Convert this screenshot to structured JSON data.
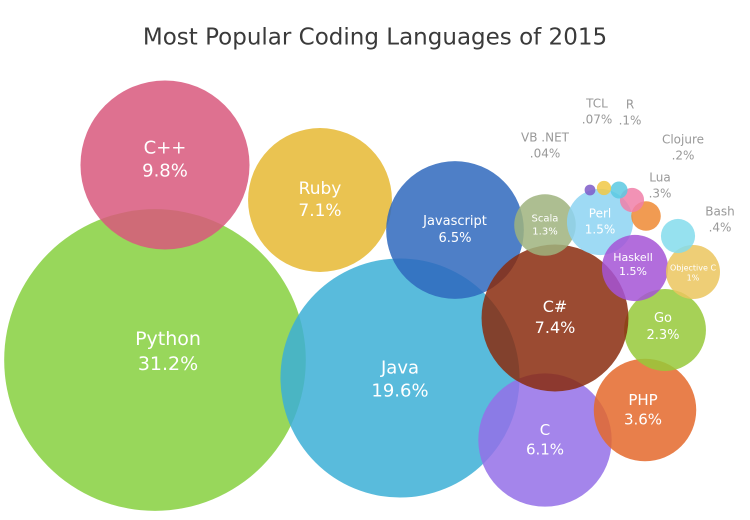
{
  "chart_data": {
    "type": "bubble",
    "title": "Most Popular Coding Languages of 2015",
    "categories": [
      "Python",
      "C++",
      "Ruby",
      "Java",
      "Javascript",
      "C",
      "PHP",
      "Go",
      "C#",
      "Scala",
      "Perl",
      "Haskell",
      "Objective C",
      "Bash",
      "Lua",
      "Clojure",
      "R",
      "TCL",
      "VB .NET"
    ],
    "values": [
      31.2,
      9.8,
      7.1,
      19.6,
      6.5,
      6.1,
      3.6,
      2.3,
      7.4,
      1.3,
      1.5,
      1.5,
      1,
      0.4,
      0.3,
      0.2,
      0.1,
      0.07,
      0.04
    ],
    "value_labels": [
      "31.2%",
      "9.8%",
      "7.1%",
      "19.6%",
      "6.5%",
      "6.1%",
      "3.6%",
      "2.3%",
      "7.4%",
      "1.3%",
      "1.5%",
      "1.5%",
      "1%",
      ".4%",
      ".3%",
      ".2%",
      ".1%",
      ".07%",
      ".04%"
    ],
    "colors": [
      "#86d03e",
      "#d8587c",
      "#e6b832",
      "#3cafd6",
      "#2f68bd",
      "#9470e8",
      "#e4692c",
      "#96c93a",
      "#8a2c0e",
      "#9fb37e",
      "#8dd3f2",
      "#a553d6",
      "#ebc55e",
      "#84dcec",
      "#ee8a34",
      "#f07fa8",
      "#5bc9e2",
      "#f1c845",
      "#7e5bc8"
    ]
  }
}
